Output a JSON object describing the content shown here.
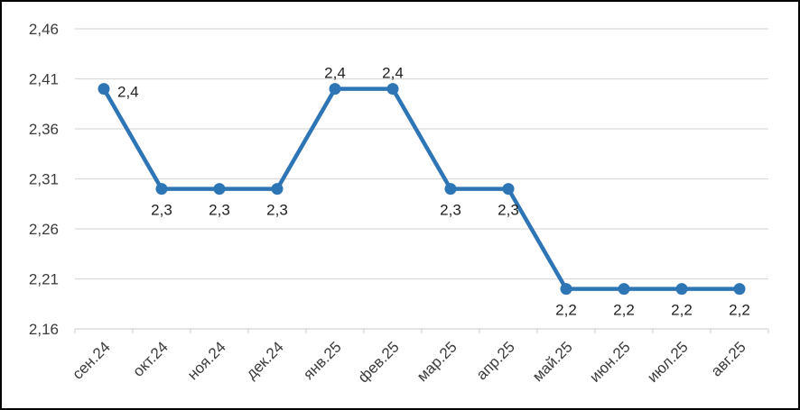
{
  "chart_data": {
    "type": "line",
    "title": "",
    "categories": [
      "сен.24",
      "окт.24",
      "ноя.24",
      "дек.24",
      "янв.25",
      "фев.25",
      "мар.25",
      "апр.25",
      "май.25",
      "июн.25",
      "июл.25",
      "авг.25"
    ],
    "series": [
      {
        "name": "",
        "color": "#2E75B6",
        "values": [
          2.4,
          2.3,
          2.3,
          2.3,
          2.4,
          2.4,
          2.3,
          2.3,
          2.2,
          2.2,
          2.2,
          2.2
        ],
        "data_labels": [
          "2,4",
          "2,3",
          "2,3",
          "2,3",
          "2,4",
          "2,4",
          "2,3",
          "2,3",
          "2,2",
          "2,2",
          "2,2",
          "2,2"
        ],
        "label_positions": [
          "right",
          "below",
          "below",
          "below",
          "above",
          "above",
          "below",
          "below",
          "below",
          "below",
          "below",
          "below"
        ]
      }
    ],
    "y_axis": {
      "min": 2.16,
      "max": 2.46,
      "step": 0.05,
      "tick_labels": [
        "2,46",
        "2,41",
        "2,36",
        "2,31",
        "2,26",
        "2,21",
        "2,16"
      ]
    },
    "x_axis": {
      "label_rotation_deg": 45,
      "tick_marks": true
    },
    "grid": true,
    "legend": false,
    "colors": {
      "line": "#2E75B6",
      "marker": "#2E75B6",
      "gridline": "#D9D9D9",
      "axis": "#D9D9D9",
      "axis_text": "#3B3B3B",
      "data_label_text": "#1F1F1F",
      "background": "#FFFFFF",
      "frame_border": "#000000"
    }
  }
}
